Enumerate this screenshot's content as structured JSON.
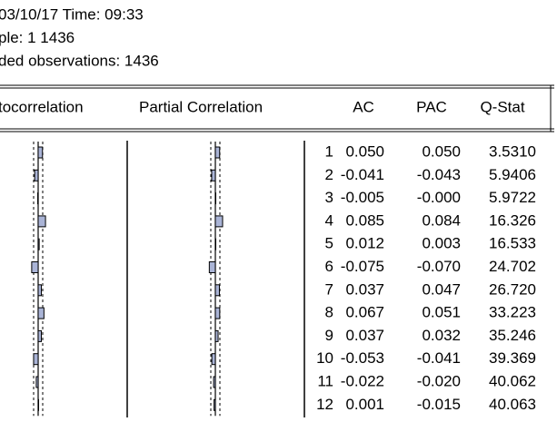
{
  "header": {
    "lines": [
      "03/10/17  Time: 09:33",
      "ple: 1 1436",
      "ded observations: 1436"
    ]
  },
  "table": {
    "columns": [
      "tocorrelation",
      "Partial Correlation",
      "AC",
      "PAC",
      "Q-Stat"
    ],
    "rows": [
      [
        "1",
        "0.050",
        "0.050",
        "3.5310"
      ],
      [
        "2",
        "-0.041",
        "-0.043",
        "5.9406"
      ],
      [
        "3",
        "-0.005",
        "-0.000",
        "5.9722"
      ],
      [
        "4",
        "0.085",
        "0.084",
        "16.326"
      ],
      [
        "5",
        "0.012",
        "0.003",
        "16.533"
      ],
      [
        "6",
        "-0.075",
        "-0.070",
        "24.702"
      ],
      [
        "7",
        "0.037",
        "0.047",
        "26.720"
      ],
      [
        "8",
        "0.067",
        "0.051",
        "33.223"
      ],
      [
        "9",
        "0.037",
        "0.032",
        "35.246"
      ],
      [
        "10",
        "-0.053",
        "-0.041",
        "39.369"
      ],
      [
        "11",
        "-0.022",
        "-0.020",
        "40.062"
      ],
      [
        "12",
        "0.001",
        "-0.015",
        "40.063"
      ]
    ]
  }
}
